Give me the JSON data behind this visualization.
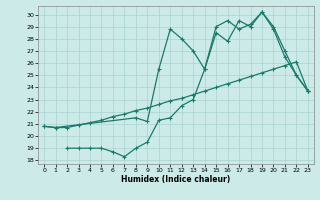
{
  "xlabel": "Humidex (Indice chaleur)",
  "bg_color": "#cceae8",
  "line_color": "#1a7a6a",
  "grid_color": "#aad4d0",
  "xlim": [
    -0.5,
    23.5
  ],
  "ylim": [
    17.7,
    30.7
  ],
  "yticks": [
    18,
    19,
    20,
    21,
    22,
    23,
    24,
    25,
    26,
    27,
    28,
    29,
    30
  ],
  "xticks": [
    0,
    1,
    2,
    3,
    4,
    5,
    6,
    7,
    8,
    9,
    10,
    11,
    12,
    13,
    14,
    15,
    16,
    17,
    18,
    19,
    20,
    21,
    22,
    23
  ],
  "line1_x": [
    0,
    1,
    2,
    3,
    4,
    5,
    6,
    7,
    8,
    9,
    10,
    11,
    12,
    13,
    14,
    15,
    16,
    17,
    18,
    19,
    20,
    21,
    22,
    23
  ],
  "line1_y": [
    20.8,
    20.7,
    20.7,
    20.9,
    21.1,
    21.3,
    21.6,
    21.8,
    22.1,
    22.3,
    22.6,
    22.9,
    23.1,
    23.4,
    23.7,
    24.0,
    24.3,
    24.6,
    24.9,
    25.2,
    25.5,
    25.8,
    26.1,
    23.7
  ],
  "line2_x": [
    2,
    3,
    4,
    5,
    6,
    7,
    8,
    9,
    10,
    11,
    12,
    13,
    14,
    15,
    16,
    17,
    18,
    19,
    20,
    21,
    22,
    23
  ],
  "line2_y": [
    19.0,
    19.0,
    19.0,
    19.0,
    18.7,
    18.3,
    19.0,
    19.5,
    21.3,
    21.5,
    22.5,
    23.0,
    25.5,
    28.5,
    27.8,
    29.5,
    29.0,
    30.2,
    29.0,
    27.0,
    25.0,
    23.7
  ],
  "line3_x": [
    0,
    1,
    8,
    9,
    10,
    11,
    12,
    13,
    14,
    15,
    16,
    17,
    18,
    19,
    20,
    21,
    22,
    23
  ],
  "line3_y": [
    20.8,
    20.7,
    21.5,
    21.2,
    25.5,
    28.8,
    28.0,
    27.0,
    25.5,
    29.0,
    29.5,
    28.8,
    29.2,
    30.2,
    28.8,
    26.5,
    25.0,
    23.7
  ]
}
